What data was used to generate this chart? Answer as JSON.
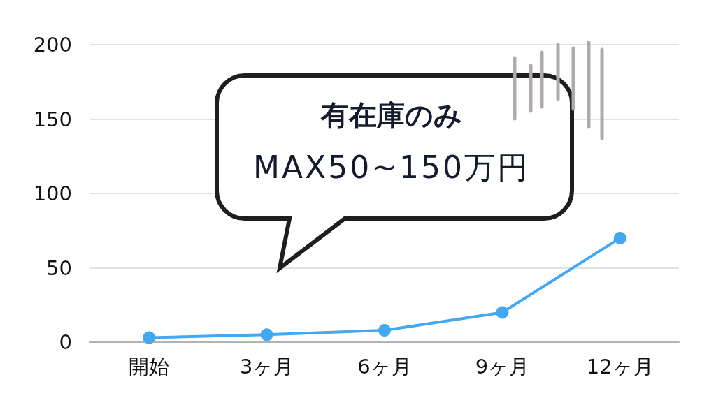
{
  "chart_data": {
    "type": "line",
    "categories": [
      "開始",
      "3ヶ月",
      "6ヶ月",
      "9ヶ月",
      "12ヶ月"
    ],
    "series": [
      {
        "color": "#42a8f2",
        "values": [
          3,
          5,
          8,
          20,
          70
        ]
      }
    ],
    "ylim": [
      0,
      200
    ],
    "yticks": [
      0,
      50,
      100,
      150,
      200
    ],
    "grid": "y",
    "marker": "circle",
    "line_style": "solid",
    "annotations": [
      "有在庫のみ",
      "MAX50~150万円"
    ]
  }
}
